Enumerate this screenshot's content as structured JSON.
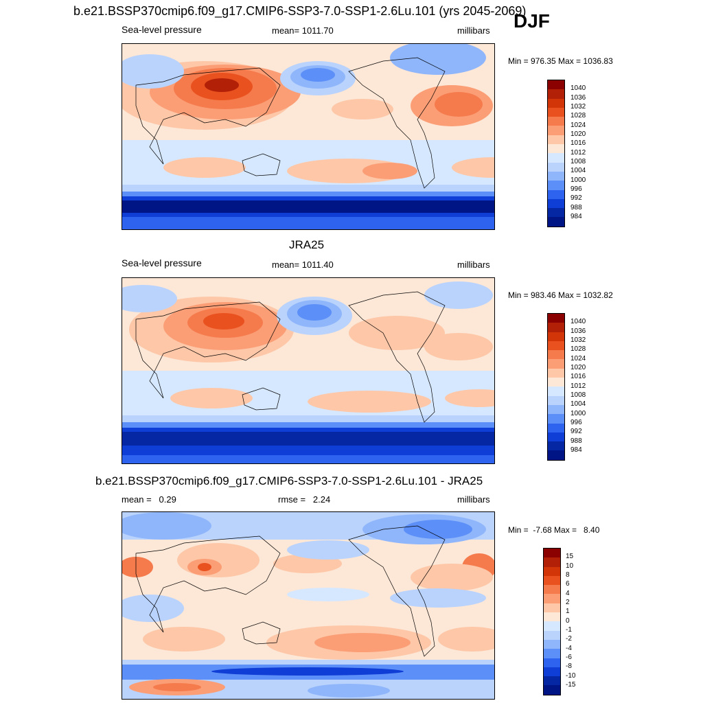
{
  "figure": {
    "main_title": "b.e21.BSSP370cmip6.f09_g17.CMIP6-SSP3-7.0-SSP1-2.6Lu.101 (yrs 2045-2069)",
    "season": "DJF"
  },
  "panels": [
    {
      "id": "model",
      "title": "",
      "left_label": "Sea-level pressure",
      "center_label": "mean= 1011.70",
      "right_label": "millibars",
      "minmax": "Min = 976.35 Max = 1036.83",
      "colorbar_ticks": [
        "1040",
        "1036",
        "1032",
        "1028",
        "1024",
        "1020",
        "1016",
        "1012",
        "1008",
        "1004",
        "1000",
        "996",
        "992",
        "988",
        "984"
      ]
    },
    {
      "id": "obs",
      "title": "JRA25",
      "left_label": "Sea-level pressure",
      "center_label": "mean= 1011.40",
      "right_label": "millibars",
      "minmax": "Min = 983.46 Max = 1032.82",
      "colorbar_ticks": [
        "1040",
        "1036",
        "1032",
        "1028",
        "1024",
        "1020",
        "1016",
        "1012",
        "1008",
        "1004",
        "1000",
        "996",
        "992",
        "988",
        "984"
      ]
    },
    {
      "id": "diff",
      "title": "b.e21.BSSP370cmip6.f09_g17.CMIP6-SSP3-7.0-SSP1-2.6Lu.101 - JRA25",
      "left_label": "mean =   0.29",
      "center_label": "rmse =   2.24",
      "right_label": "millibars",
      "minmax": "Min =  -7.68 Max =   8.40",
      "colorbar_ticks": [
        "15",
        "10",
        "8",
        "6",
        "4",
        "2",
        "1",
        "0",
        "-1",
        "-2",
        "-4",
        "-6",
        "-8",
        "-10",
        "-15"
      ]
    }
  ],
  "colors": {
    "levels": [
      "#8b0000",
      "#b32008",
      "#d23507",
      "#e9521f",
      "#f57a4c",
      "#fb9e76",
      "#fdc7a8",
      "#fde7d6",
      "#d6e8ff",
      "#b9d3fd",
      "#8fb6fb",
      "#5c8ff7",
      "#2e63f0",
      "#0f3ed6",
      "#0527a3",
      "#001585"
    ]
  }
}
